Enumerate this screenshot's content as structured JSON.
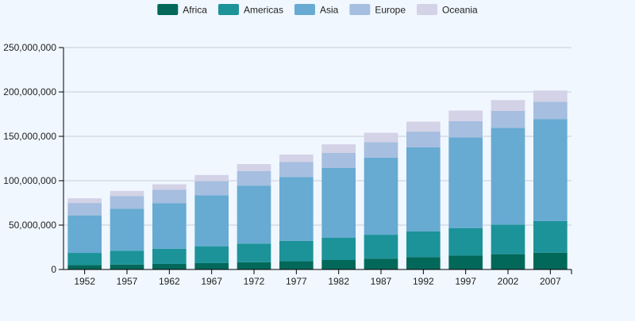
{
  "chart_data": {
    "type": "bar",
    "stacked": true,
    "categories": [
      "1952",
      "1957",
      "1962",
      "1967",
      "1972",
      "1977",
      "1982",
      "1987",
      "1992",
      "1997",
      "2002",
      "2007"
    ],
    "series": [
      {
        "name": "Africa",
        "color": "#02695a",
        "values": [
          5000000,
          5600000,
          6300000,
          7200000,
          8200000,
          9300000,
          10700000,
          12200000,
          14000000,
          15700000,
          17300000,
          19000000
        ]
      },
      {
        "name": "Americas",
        "color": "#1c9399",
        "values": [
          13700000,
          15600000,
          17000000,
          19000000,
          21000000,
          23000000,
          25000000,
          27000000,
          29000000,
          31000000,
          33300000,
          35500000
        ]
      },
      {
        "name": "Asia",
        "color": "#67aad2",
        "values": [
          42300000,
          47300000,
          51300000,
          57300000,
          65300000,
          71900000,
          78600000,
          86800000,
          94500000,
          102000000,
          109000000,
          115000000
        ]
      },
      {
        "name": "Europe",
        "color": "#a6bedf",
        "values": [
          13900000,
          14300000,
          15100000,
          16000000,
          16500000,
          16800000,
          17200000,
          17500000,
          17800000,
          18400000,
          19000000,
          19500000
        ]
      },
      {
        "name": "Oceania",
        "color": "#d3d2e7",
        "values": [
          5300000,
          5700000,
          6300000,
          6900000,
          7700000,
          8500000,
          9500000,
          10500000,
          11200000,
          11900000,
          12200000,
          12600000
        ]
      }
    ],
    "ylim": [
      0,
      250000000
    ],
    "yticks": [
      0,
      50000000,
      100000000,
      150000000,
      200000000,
      250000000
    ],
    "ytick_labels": [
      "0",
      "50,000,000",
      "100,000,000",
      "150,000,000",
      "200,000,000",
      "250,000,000"
    ],
    "legend_position": "top-center",
    "grid": true
  }
}
